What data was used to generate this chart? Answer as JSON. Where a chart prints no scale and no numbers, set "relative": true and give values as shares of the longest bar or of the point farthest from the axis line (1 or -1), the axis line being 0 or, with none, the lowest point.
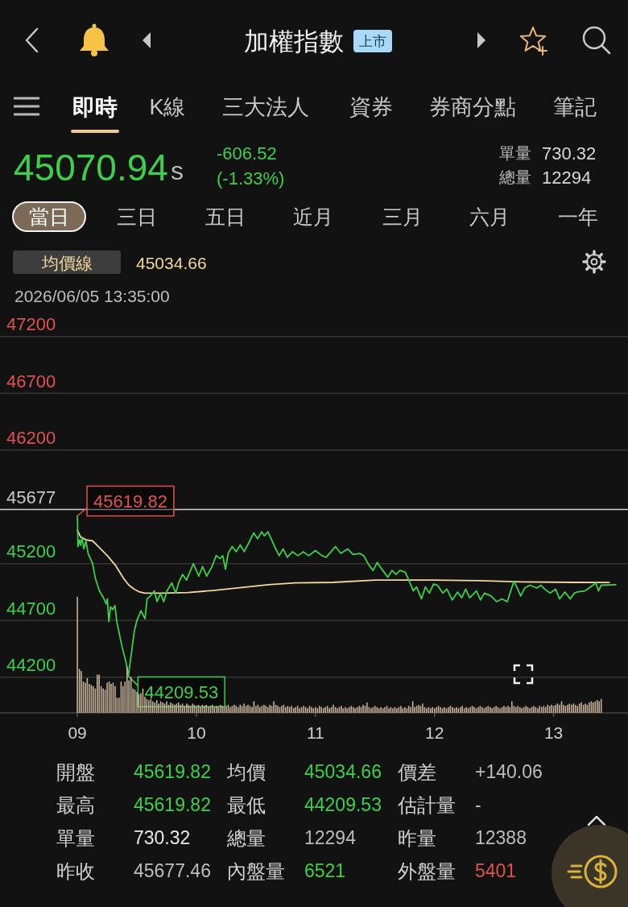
{
  "chart_data": [
    {
      "type": "other",
      "title": "加權指數",
      "annotations": [
        "上市",
        "即時",
        "K線",
        "三大法人",
        "資券",
        "券商分點",
        "筆記",
        "45070.94",
        "s",
        "-606.52",
        "(-1.33%)",
        "單量",
        "730.32",
        "總量",
        "12294",
        "當日",
        "三日",
        "五日",
        "近月",
        "三月",
        "六月",
        "一年"
      ],
      "colors": [
        "#0e3a5c",
        "#ffffff",
        "#c8c8c8",
        "#c8c8c8",
        "#c8c8c8",
        "#c8c8c8",
        "#c8c8c8",
        "#3ecf4a",
        "#b8b8b8",
        "#3ecf4a",
        "#3ecf4a",
        "#b8b8b8",
        "#d8d8d8",
        "#b8b8b8",
        "#d8d8d8",
        "#ffffff",
        "#c8c8c8",
        "#c8c8c8",
        "#c8c8c8",
        "#c8c8c8",
        "#c8c8c8",
        "#c8c8c8"
      ]
    },
    {
      "type": "line",
      "legend": "top left",
      "grid": "y",
      "tick_labels": "y",
      "xlim": [
        8.35,
        13.625
      ],
      "ylim": [
        43886,
        47200
      ],
      "yticks": [
        44200,
        44700,
        45200,
        46200,
        46700,
        47200
      ],
      "ref_lines": [
        {
          "axis": "y",
          "value": 45677.46,
          "label": "45677",
          "color": "#d0d0d0"
        }
      ],
      "annotations": [
        "45034.66",
        "2026/06/05 13:35:00",
        {
          "text": "45619.82",
          "x": 9,
          "y": 45619.82
        },
        {
          "text": "44209.53",
          "x": 9.428,
          "y": 44209.53
        }
      ],
      "series": [
        {
          "name": "均價線",
          "color": "#f2d79e",
          "x": [
            9,
            9.027,
            9.072,
            9.128,
            9.185,
            9.252,
            9.32,
            9.388,
            9.433,
            9.478,
            9.523,
            9.568,
            9.703,
            9.929,
            10.154,
            10.379,
            10.605,
            10.83,
            11.145,
            11.506,
            11.979,
            12.386,
            12.724,
            13.174,
            13.467
          ],
          "values": [
            45495,
            45435,
            45410,
            45400,
            45340,
            45270,
            45185,
            45070,
            45010,
            44975,
            44950,
            44940,
            44940,
            44945,
            44965,
            44990,
            45015,
            45030,
            45035,
            45055,
            45055,
            45050,
            45040,
            45035,
            45034.66
          ]
        },
        {
          "color": "#3ecf4a",
          "x": [
            9,
            9.005,
            9.016,
            9.027,
            9.038,
            9.054,
            9.072,
            9.09,
            9.128,
            9.151,
            9.185,
            9.219,
            9.241,
            9.252,
            9.264,
            9.279,
            9.297,
            9.316,
            9.331,
            9.376,
            9.41,
            9.428,
            9.455,
            9.478,
            9.5,
            9.534,
            9.568,
            9.586,
            9.613,
            9.647,
            9.669,
            9.699,
            9.725,
            9.753,
            9.793,
            9.826,
            9.85,
            9.883,
            9.917,
            9.974,
            10.019,
            10.052,
            10.086,
            10.131,
            10.165,
            10.198,
            10.221,
            10.244,
            10.266,
            10.3,
            10.334,
            10.368,
            10.401,
            10.436,
            10.481,
            10.514,
            10.548,
            10.571,
            10.6,
            10.627,
            10.661,
            10.695,
            10.728,
            10.763,
            10.808,
            10.853,
            10.898,
            10.943,
            10.999,
            11.055,
            11.089,
            11.168,
            11.213,
            11.27,
            11.315,
            11.371,
            11.405,
            11.45,
            11.484,
            11.518,
            11.551,
            11.608,
            11.642,
            11.676,
            11.709,
            11.754,
            11.788,
            11.822,
            11.849,
            11.89,
            11.923,
            11.957,
            11.991,
            12.025,
            12.07,
            12.104,
            12.149,
            12.194,
            12.228,
            12.262,
            12.295,
            12.352,
            12.386,
            12.419,
            12.475,
            12.521,
            12.566,
            12.611,
            12.634,
            12.667,
            12.69,
            12.724,
            12.757,
            12.802,
            12.859,
            12.893,
            12.926,
            12.971,
            13.016,
            13.05,
            13.095,
            13.14,
            13.174,
            13.197,
            13.264,
            13.298,
            13.355,
            13.377,
            13.4,
            13.523
          ],
          "values": [
            45619.82,
            45350,
            45410,
            45360,
            45435,
            45330,
            45400,
            45290,
            45200,
            45070,
            44960,
            44900,
            44845,
            44890,
            44690,
            44820,
            44795,
            44830,
            44690,
            44465,
            44325,
            44209.53,
            44420,
            44605,
            44700,
            44785,
            44715,
            44890,
            44915,
            44960,
            44865,
            44940,
            44865,
            44960,
            45030,
            44940,
            45030,
            45105,
            45055,
            45200,
            45090,
            45175,
            45090,
            45175,
            45270,
            45245,
            45270,
            45150,
            45290,
            45350,
            45305,
            45365,
            45305,
            45375,
            45470,
            45420,
            45480,
            45445,
            45480,
            45420,
            45340,
            45270,
            45330,
            45255,
            45305,
            45270,
            45305,
            45270,
            45315,
            45270,
            45255,
            45350,
            45290,
            45330,
            45280,
            45290,
            45270,
            45185,
            45140,
            45210,
            45160,
            45080,
            45140,
            45105,
            45140,
            45125,
            45045,
            44960,
            44995,
            44890,
            44995,
            44940,
            45020,
            45010,
            44940,
            44975,
            44880,
            44950,
            44900,
            44975,
            44900,
            44960,
            44880,
            44940,
            44915,
            44865,
            44890,
            44865,
            44940,
            45045,
            44995,
            44915,
            44985,
            45010,
            44985,
            45010,
            44975,
            44940,
            44975,
            44890,
            44950,
            44890,
            44940,
            44950,
            44960,
            44985,
            45030,
            44960,
            45010,
            45015
          ]
        }
      ]
    },
    {
      "type": "bar",
      "relative": true,
      "color": "#c8b59b",
      "xlim": [
        8.35,
        13.625
      ],
      "xticks": [
        {
          "value": 9,
          "label": "09"
        },
        10,
        11,
        12,
        13
      ],
      "x": [
        9,
        9.017,
        9.033,
        9.05,
        9.067,
        9.083,
        9.1,
        9.117,
        9.133,
        9.15,
        9.167,
        9.183,
        9.2,
        9.217,
        9.233,
        9.25,
        9.267,
        9.283,
        9.3,
        9.317,
        9.333,
        9.35,
        9.367,
        9.383,
        9.4,
        9.417,
        9.433,
        9.45,
        9.467,
        9.483,
        9.5,
        9.517,
        9.533,
        9.55,
        9.567,
        9.583,
        9.6,
        9.617,
        9.633,
        9.65,
        9.667,
        9.683,
        9.7,
        9.717,
        9.733,
        9.75,
        9.767,
        9.783,
        9.8,
        9.817,
        9.833,
        9.85,
        9.867,
        9.883,
        9.9,
        9.917,
        9.933,
        9.95,
        9.967,
        9.983,
        10,
        10.017,
        10.033,
        10.05,
        10.067,
        10.083,
        10.1,
        10.117,
        10.133,
        10.15,
        10.167,
        10.183,
        10.2,
        10.217,
        10.233,
        10.25,
        10.267,
        10.283,
        10.3,
        10.317,
        10.333,
        10.35,
        10.367,
        10.383,
        10.4,
        10.417,
        10.433,
        10.45,
        10.467,
        10.483,
        10.5,
        10.517,
        10.533,
        10.55,
        10.567,
        10.583,
        10.6,
        10.617,
        10.633,
        10.65,
        10.667,
        10.683,
        10.7,
        10.717,
        10.733,
        10.75,
        10.767,
        10.783,
        10.8,
        10.817,
        10.833,
        10.85,
        10.867,
        10.883,
        10.9,
        10.917,
        10.933,
        10.95,
        10.967,
        10.983,
        11,
        11.017,
        11.033,
        11.05,
        11.067,
        11.083,
        11.1,
        11.117,
        11.133,
        11.15,
        11.167,
        11.183,
        11.2,
        11.217,
        11.233,
        11.25,
        11.267,
        11.283,
        11.3,
        11.317,
        11.333,
        11.35,
        11.367,
        11.383,
        11.4,
        11.417,
        11.433,
        11.45,
        11.467,
        11.483,
        11.5,
        11.517,
        11.533,
        11.55,
        11.567,
        11.583,
        11.6,
        11.617,
        11.633,
        11.65,
        11.667,
        11.683,
        11.7,
        11.717,
        11.733,
        11.75,
        11.767,
        11.783,
        11.8,
        11.817,
        11.833,
        11.85,
        11.867,
        11.883,
        11.9,
        11.917,
        11.933,
        11.95,
        11.967,
        11.983,
        12,
        12.017,
        12.033,
        12.05,
        12.067,
        12.083,
        12.1,
        12.117,
        12.133,
        12.15,
        12.167,
        12.183,
        12.2,
        12.217,
        12.233,
        12.25,
        12.267,
        12.283,
        12.3,
        12.317,
        12.333,
        12.35,
        12.367,
        12.383,
        12.4,
        12.417,
        12.433,
        12.45,
        12.467,
        12.483,
        12.5,
        12.517,
        12.533,
        12.55,
        12.567,
        12.583,
        12.6,
        12.617,
        12.633,
        12.65,
        12.667,
        12.683,
        12.7,
        12.717,
        12.733,
        12.75,
        12.767,
        12.783,
        12.8,
        12.817,
        12.833,
        12.85,
        12.867,
        12.883,
        12.9,
        12.917,
        12.933,
        12.95,
        12.967,
        12.983,
        13,
        13.017,
        13.033,
        13.05,
        13.067,
        13.083,
        13.1,
        13.117,
        13.133,
        13.15,
        13.167,
        13.183,
        13.2,
        13.217,
        13.233,
        13.25,
        13.267,
        13.283,
        13.3,
        13.317,
        13.333,
        13.35,
        13.367,
        13.383,
        13.4
      ],
      "values": [
        1.0,
        0.38,
        0.36,
        0.27,
        0.26,
        0.3,
        0.25,
        0.24,
        0.23,
        0.21,
        0.33,
        0.33,
        0.23,
        0.21,
        0.2,
        0.26,
        0.27,
        0.25,
        0.26,
        0.23,
        0.13,
        0.13,
        0.27,
        0.23,
        0.27,
        0.4,
        0.28,
        0.31,
        0.21,
        0.2,
        0.18,
        0.16,
        0.17,
        0.21,
        0.14,
        0.12,
        0.11,
        0.12,
        0.1,
        0.09,
        0.11,
        0.08,
        0.1,
        0.09,
        0.08,
        0.1,
        0.07,
        0.09,
        0.08,
        0.07,
        0.08,
        0.09,
        0.07,
        0.08,
        0.06,
        0.08,
        0.07,
        0.06,
        0.08,
        0.07,
        0.06,
        0.07,
        0.05,
        0.07,
        0.06,
        0.07,
        0.05,
        0.06,
        0.07,
        0.05,
        0.06,
        0.05,
        0.07,
        0.06,
        0.05,
        0.06,
        0.07,
        0.05,
        0.06,
        0.07,
        0.06,
        0.05,
        0.07,
        0.06,
        0.08,
        0.06,
        0.07,
        0.06,
        0.05,
        0.1,
        0.06,
        0.07,
        0.05,
        0.06,
        0.07,
        0.06,
        0.05,
        0.07,
        0.06,
        0.1,
        0.07,
        0.06,
        0.05,
        0.06,
        0.07,
        0.05,
        0.06,
        0.05,
        0.06,
        0.04,
        0.05,
        0.06,
        0.04,
        0.05,
        0.06,
        0.05,
        0.04,
        0.06,
        0.05,
        0.04,
        0.05,
        0.04,
        0.06,
        0.05,
        0.04,
        0.05,
        0.06,
        0.04,
        0.05,
        0.07,
        0.05,
        0.04,
        0.05,
        0.06,
        0.04,
        0.05,
        0.04,
        0.05,
        0.06,
        0.05,
        0.04,
        0.05,
        0.06,
        0.05,
        0.07,
        0.06,
        0.09,
        0.05,
        0.04,
        0.05,
        0.06,
        0.05,
        0.04,
        0.05,
        0.04,
        0.05,
        0.06,
        0.04,
        0.05,
        0.04,
        0.05,
        0.04,
        0.05,
        0.06,
        0.04,
        0.05,
        0.04,
        0.06,
        0.05,
        0.1,
        0.05,
        0.06,
        0.07,
        0.06,
        0.08,
        0.05,
        0.04,
        0.05,
        0.04,
        0.05,
        0.04,
        0.05,
        0.06,
        0.05,
        0.04,
        0.05,
        0.04,
        0.05,
        0.06,
        0.05,
        0.04,
        0.05,
        0.04,
        0.05,
        0.06,
        0.04,
        0.05,
        0.04,
        0.05,
        0.06,
        0.05,
        0.04,
        0.05,
        0.06,
        0.05,
        0.04,
        0.05,
        0.06,
        0.05,
        0.04,
        0.05,
        0.06,
        0.05,
        0.04,
        0.05,
        0.06,
        0.05,
        0.06,
        0.05,
        0.1,
        0.06,
        0.05,
        0.06,
        0.05,
        0.04,
        0.05,
        0.06,
        0.05,
        0.04,
        0.05,
        0.06,
        0.05,
        0.04,
        0.06,
        0.05,
        0.06,
        0.05,
        0.07,
        0.06,
        0.07,
        0.06,
        0.07,
        0.08,
        0.07,
        0.1,
        0.07,
        0.06,
        0.07,
        0.08,
        0.07,
        0.08,
        0.07,
        0.06,
        0.08,
        0.09,
        0.07,
        0.08,
        0.07,
        0.09,
        0.1,
        0.09,
        0.1,
        0.11,
        0.1,
        0.12
      ]
    },
    {
      "type": "other",
      "annotations": [
        "開盤",
        "45619.82",
        "均價",
        "45034.66",
        "價差",
        "+140.06",
        "最高",
        "45619.82",
        "最低",
        "44209.53",
        "估計量",
        "-",
        "單量",
        "730.32",
        "總量",
        "12294",
        "昨量",
        "12388",
        "昨收",
        "45677.46",
        "內盤量",
        "6521",
        "外盤量",
        "5401"
      ],
      "colors": [
        "#d0d0d0",
        "#3ecf4a",
        "#d0d0d0",
        "#3ecf4a",
        "#d0d0d0",
        "#bdbdbd",
        "#d0d0d0",
        "#3ecf4a",
        "#d0d0d0",
        "#3ecf4a",
        "#d0d0d0",
        "#bdbdbd",
        "#d0d0d0",
        "#e8e8e8",
        "#d0d0d0",
        "#bdbdbd",
        "#d0d0d0",
        "#bdbdbd",
        "#d0d0d0",
        "#bdbdbd",
        "#d0d0d0",
        "#3ecf4a",
        "#d0d0d0",
        "#e0524d"
      ]
    }
  ]
}
